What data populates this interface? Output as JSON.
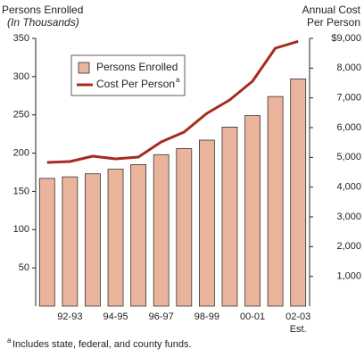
{
  "chart_data": {
    "type": "bar_line",
    "left_title": "Persons Enrolled",
    "left_subtitle": "(In Thousands)",
    "right_title": [
      "Annual Cost",
      "Per Person"
    ],
    "categories": [
      null,
      "92-93",
      null,
      "94-95",
      null,
      "96-97",
      null,
      "98-99",
      null,
      "00-01",
      null,
      "02-03 Est."
    ],
    "series": [
      {
        "name": "Persons Enrolled",
        "type": "bar",
        "color": "#e9b49b",
        "values": [
          167,
          169,
          173,
          179,
          185,
          198,
          206,
          217,
          234,
          249,
          274,
          297
        ]
      },
      {
        "name": "Cost Per Person",
        "superscript": "a",
        "type": "line",
        "axis": "y2",
        "color": "#a82a20",
        "values": [
          4830,
          4860,
          5040,
          4950,
          5010,
          5520,
          5850,
          6480,
          6930,
          7560,
          8670,
          8900
        ]
      }
    ],
    "ylim": [
      0,
      350
    ],
    "yticks": [
      50,
      100,
      150,
      200,
      250,
      300,
      350
    ],
    "y2lim": [
      0,
      9000
    ],
    "y2ticks": [
      {
        "value": 1000,
        "label": "1,000"
      },
      {
        "value": 2000,
        "label": "2,000"
      },
      {
        "value": 3000,
        "label": "3,000"
      },
      {
        "value": 4000,
        "label": "4,000"
      },
      {
        "value": 5000,
        "label": "5,000"
      },
      {
        "value": 6000,
        "label": "6,000"
      },
      {
        "value": 7000,
        "label": "7,000"
      },
      {
        "value": 8000,
        "label": "8,000"
      },
      {
        "value": 9000,
        "label": "$9,000"
      }
    ],
    "footnote": {
      "marker": "a",
      "text": "Includes state, federal, and county funds."
    }
  }
}
